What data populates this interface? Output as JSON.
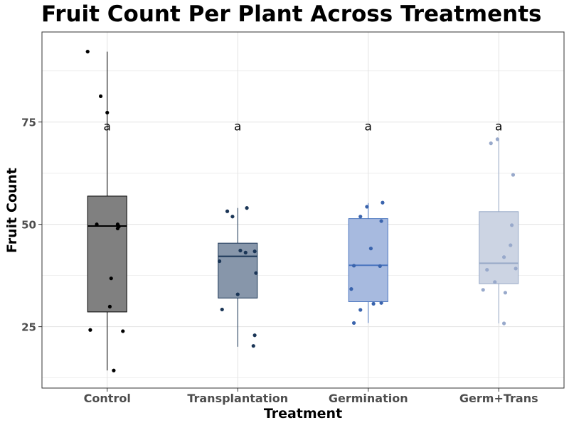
{
  "chart_data": {
    "type": "box",
    "title": "Fruit Count Per Plant Across Treatments",
    "xlabel": "Treatment",
    "ylabel": "Fruit Count",
    "ylim": [
      10,
      97
    ],
    "yticks": [
      25,
      50,
      75
    ],
    "grid": true,
    "categories": [
      "Control",
      "Transplantation",
      "Germination",
      "Germ+Trans"
    ],
    "group_letters": [
      "a",
      "a",
      "a",
      "a"
    ],
    "letter_y": 74,
    "colors": {
      "box_fill": [
        "#808080",
        "#8796aa",
        "#a7badf",
        "#ccd4e3"
      ],
      "box_line": [
        "#000000",
        "#1a3556",
        "#4a75bf",
        "#97a9c7"
      ],
      "points": [
        "#000000",
        "#1a3556",
        "#3a64ad",
        "#98a9cb"
      ]
    },
    "boxes": [
      {
        "name": "Control",
        "min": 14.3,
        "q1": 28.6,
        "median": 49.6,
        "q3": 56.9,
        "max": 92.2
      },
      {
        "name": "Transplantation",
        "min": 20.1,
        "q1": 32.0,
        "median": 42.2,
        "q3": 45.4,
        "max": 54.0
      },
      {
        "name": "Germination",
        "min": 25.9,
        "q1": 31.1,
        "median": 40.0,
        "q3": 51.4,
        "max": 55.2
      },
      {
        "name": "Germ+Trans",
        "min": 25.8,
        "q1": 35.5,
        "median": 40.5,
        "q3": 53.1,
        "max": 70.8
      }
    ],
    "points": [
      [
        {
          "dx": -0.15,
          "y": 92.2
        },
        {
          "dx": -0.05,
          "y": 81.3
        },
        {
          "dx": 0.0,
          "y": 77.3
        },
        {
          "dx": -0.08,
          "y": 50.0
        },
        {
          "dx": 0.08,
          "y": 50.0
        },
        {
          "dx": 0.09,
          "y": 49.5
        },
        {
          "dx": 0.08,
          "y": 49.0
        },
        {
          "dx": 0.03,
          "y": 36.8
        },
        {
          "dx": 0.02,
          "y": 29.9
        },
        {
          "dx": -0.13,
          "y": 24.2
        },
        {
          "dx": 0.12,
          "y": 23.9
        },
        {
          "dx": 0.05,
          "y": 14.3
        }
      ],
      [
        {
          "dx": -0.08,
          "y": 53.2
        },
        {
          "dx": 0.07,
          "y": 54.0
        },
        {
          "dx": -0.04,
          "y": 51.9
        },
        {
          "dx": 0.02,
          "y": 43.6
        },
        {
          "dx": 0.06,
          "y": 43.1
        },
        {
          "dx": 0.13,
          "y": 43.4
        },
        {
          "dx": -0.14,
          "y": 41.0
        },
        {
          "dx": 0.14,
          "y": 38.1
        },
        {
          "dx": 0.0,
          "y": 32.9
        },
        {
          "dx": -0.12,
          "y": 29.2
        },
        {
          "dx": 0.13,
          "y": 22.9
        },
        {
          "dx": 0.12,
          "y": 20.3
        }
      ],
      [
        {
          "dx": 0.11,
          "y": 55.3
        },
        {
          "dx": -0.01,
          "y": 54.3
        },
        {
          "dx": -0.06,
          "y": 51.9
        },
        {
          "dx": 0.1,
          "y": 50.8
        },
        {
          "dx": 0.02,
          "y": 44.1
        },
        {
          "dx": -0.11,
          "y": 39.9
        },
        {
          "dx": 0.09,
          "y": 39.8
        },
        {
          "dx": -0.13,
          "y": 34.2
        },
        {
          "dx": -0.06,
          "y": 29.1
        },
        {
          "dx": 0.04,
          "y": 30.6
        },
        {
          "dx": 0.1,
          "y": 30.8
        },
        {
          "dx": -0.11,
          "y": 25.9
        }
      ],
      [
        {
          "dx": -0.06,
          "y": 69.8
        },
        {
          "dx": -0.01,
          "y": 70.8
        },
        {
          "dx": 0.11,
          "y": 62.1
        },
        {
          "dx": 0.1,
          "y": 49.8
        },
        {
          "dx": 0.09,
          "y": 44.9
        },
        {
          "dx": 0.04,
          "y": 42.0
        },
        {
          "dx": -0.09,
          "y": 38.9
        },
        {
          "dx": 0.13,
          "y": 39.2
        },
        {
          "dx": -0.03,
          "y": 35.9
        },
        {
          "dx": -0.12,
          "y": 34.0
        },
        {
          "dx": 0.05,
          "y": 33.3
        },
        {
          "dx": 0.04,
          "y": 25.8
        }
      ]
    ]
  }
}
